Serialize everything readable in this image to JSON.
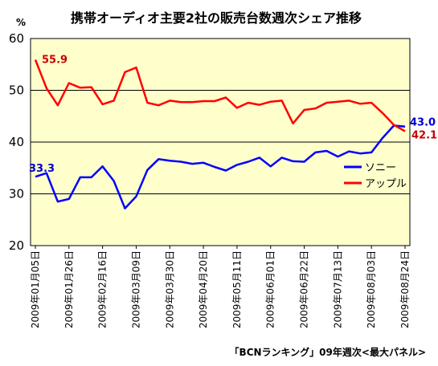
{
  "chart_data": {
    "type": "line",
    "title": "携帯オーディオ主要2社の販売台数週次シェア推移",
    "unit": "%",
    "source": "「BCNランキング」09年週次<最大パネル>",
    "ylim": [
      20,
      60
    ],
    "yticks": [
      20,
      30,
      40,
      50,
      60
    ],
    "grid": true,
    "legend_position": "right-middle",
    "plot_background": "#ffffcc",
    "x": [
      "2009年01月05日",
      "2009年01月12日",
      "2009年01月19日",
      "2009年01月26日",
      "2009年02月02日",
      "2009年02月09日",
      "2009年02月16日",
      "2009年02月23日",
      "2009年03月02日",
      "2009年03月09日",
      "2009年03月16日",
      "2009年03月23日",
      "2009年03月30日",
      "2009年04月06日",
      "2009年04月13日",
      "2009年04月20日",
      "2009年04月27日",
      "2009年05月04日",
      "2009年05月11日",
      "2009年05月18日",
      "2009年05月25日",
      "2009年06月01日",
      "2009年06月08日",
      "2009年06月15日",
      "2009年06月22日",
      "2009年06月29日",
      "2009年07月06日",
      "2009年07月13日",
      "2009年07月20日",
      "2009年07月27日",
      "2009年08月03日",
      "2009年08月10日",
      "2009年08月17日",
      "2009年08月24日"
    ],
    "xtick_labels": [
      "2009年01月05日",
      "2009年01月26日",
      "2009年02月16日",
      "2009年03月09日",
      "2009年03月30日",
      "2009年04月20日",
      "2009年05月11日",
      "2009年06月01日",
      "2009年06月22日",
      "2009年07月13日",
      "2009年08月03日",
      "2009年08月24日"
    ],
    "series": [
      {
        "name": "ソニー",
        "color": "#0000ff",
        "values": [
          33.3,
          34.0,
          28.5,
          29.0,
          33.2,
          33.2,
          35.3,
          32.5,
          27.2,
          29.5,
          34.6,
          36.7,
          36.4,
          36.2,
          35.8,
          36.0,
          35.2,
          34.5,
          35.6,
          36.2,
          37.0,
          35.3,
          37.0,
          36.3,
          36.2,
          38.0,
          38.3,
          37.2,
          38.2,
          37.8,
          38.0,
          40.8,
          43.2,
          43.0
        ]
      },
      {
        "name": "アップル",
        "color": "#ff0000",
        "values": [
          55.9,
          50.4,
          47.1,
          51.4,
          50.5,
          50.6,
          47.3,
          48.0,
          53.5,
          54.4,
          47.6,
          47.1,
          48.0,
          47.7,
          47.7,
          47.9,
          47.9,
          48.6,
          46.6,
          47.6,
          47.2,
          47.8,
          48.0,
          43.6,
          46.2,
          46.5,
          47.6,
          47.8,
          48.0,
          47.4,
          47.6,
          45.6,
          43.3,
          42.1
        ]
      }
    ],
    "annotations": [
      {
        "text": "55.9",
        "series": "アップル",
        "point": "first",
        "color": "#cc0000"
      },
      {
        "text": "33.3",
        "series": "ソニー",
        "point": "first",
        "color": "#0000cc"
      },
      {
        "text": "43.0",
        "series": "ソニー",
        "point": "last",
        "color": "#0000cc"
      },
      {
        "text": "42.1",
        "series": "アップル",
        "point": "last",
        "color": "#cc0000"
      }
    ]
  }
}
